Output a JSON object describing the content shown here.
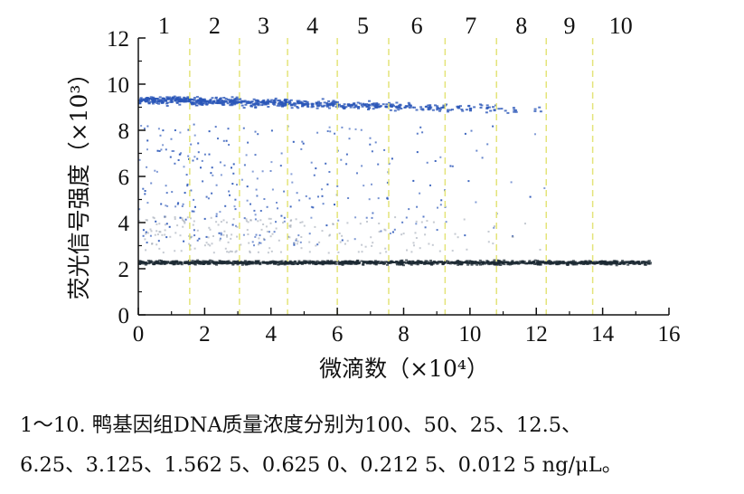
{
  "chart_data": {
    "type": "scatter",
    "xlabel": "微滴数（×10⁴）",
    "ylabel": "荧光信号强度（×10³）",
    "xlim": [
      0,
      16
    ],
    "ylim": [
      0,
      12
    ],
    "x_ticks": [
      "0",
      "2",
      "4",
      "6",
      "8",
      "10",
      "12",
      "14",
      "16"
    ],
    "y_ticks": [
      "0",
      "2",
      "4",
      "6",
      "8",
      "10",
      "12"
    ],
    "grid": false,
    "segment_boundaries": [
      1.55,
      3.05,
      4.5,
      6.0,
      7.55,
      9.25,
      10.8,
      12.3,
      13.7
    ],
    "segments": [
      {
        "label": "1",
        "x_range": [
          0,
          1.55
        ],
        "positive_density": 1.0
      },
      {
        "label": "2",
        "x_range": [
          1.55,
          3.05
        ],
        "positive_density": 0.9
      },
      {
        "label": "3",
        "x_range": [
          3.05,
          4.5
        ],
        "positive_density": 0.75
      },
      {
        "label": "4",
        "x_range": [
          4.5,
          6.0
        ],
        "positive_density": 0.6
      },
      {
        "label": "5",
        "x_range": [
          6.0,
          7.55
        ],
        "positive_density": 0.5
      },
      {
        "label": "6",
        "x_range": [
          7.55,
          9.25
        ],
        "positive_density": 0.35
      },
      {
        "label": "7",
        "x_range": [
          9.25,
          10.8
        ],
        "positive_density": 0.2
      },
      {
        "label": "8",
        "x_range": [
          10.8,
          12.3
        ],
        "positive_density": 0.08
      },
      {
        "label": "9",
        "x_range": [
          12.3,
          13.7
        ],
        "positive_density": 0.0
      },
      {
        "label": "10",
        "x_range": [
          13.7,
          15.4
        ],
        "positive_density": 0.0
      }
    ],
    "clusters": [
      {
        "name": "positive droplets",
        "y_center": 9.0,
        "color": "#2a56b8"
      },
      {
        "name": "negative droplets",
        "y_center": 2.3,
        "color": "#1c2a33"
      }
    ]
  },
  "caption": {
    "line1": "1～10. 鸭基因组DNA质量浓度分别为100、50、25、12.5、",
    "line2": "6.25、3.125、1.562 5、0.625 0、0.212 5、0.012 5 ng/μL。"
  }
}
